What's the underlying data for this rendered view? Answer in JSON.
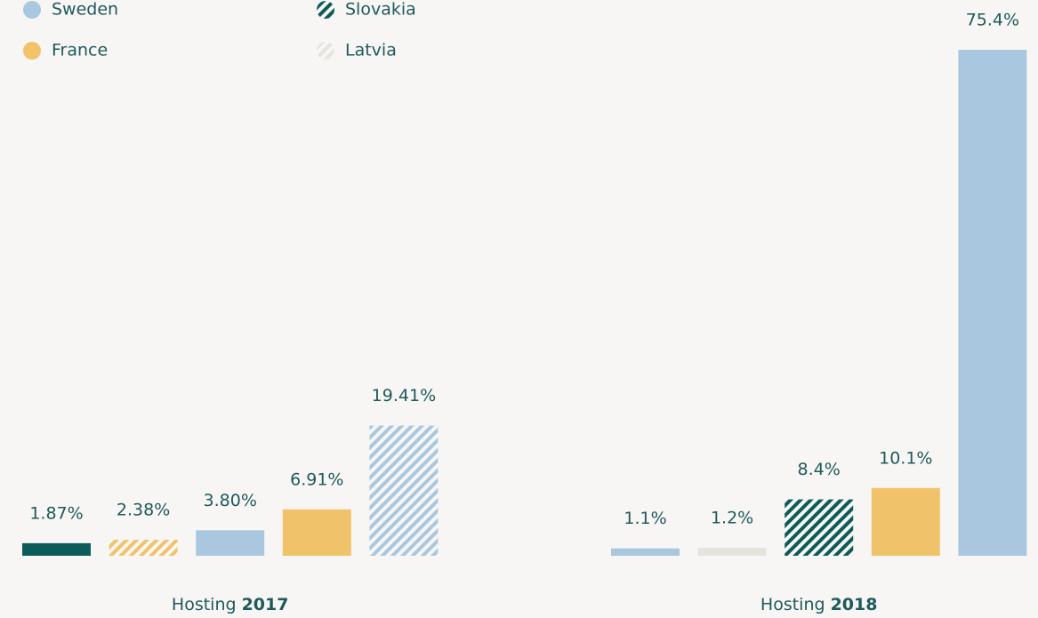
{
  "chart_data": {
    "type": "bar",
    "legend": [
      {
        "name": "Sweden",
        "color": "#a9c8e0",
        "hatched": false
      },
      {
        "name": "France",
        "color": "#f0c36a",
        "hatched": false
      },
      {
        "name": "Slovakia",
        "color": "#0d5c5a",
        "hatched": true
      },
      {
        "name": "Latvia",
        "color": "#e6e4de",
        "hatched": true
      }
    ],
    "groups": [
      {
        "label": "Hosting",
        "year": "2017",
        "values": [
          1.87,
          2.38,
          3.8,
          6.91,
          19.41
        ],
        "value_labels": [
          "1.87%",
          "2.38%",
          "3.80%",
          "6.91%",
          "19.41%"
        ],
        "colors": [
          "#0d5c5a",
          "#f0c36a",
          "#a9c8e0",
          "#f0c36a",
          "#a9c8e0"
        ],
        "hatched": [
          false,
          true,
          false,
          false,
          true
        ]
      },
      {
        "label": "Hosting",
        "year": "2018",
        "values": [
          1.1,
          1.2,
          8.4,
          10.1,
          75.4
        ],
        "value_labels": [
          "1.1%",
          "1.2%",
          "8.4%",
          "10.1%",
          "75.4%"
        ],
        "colors": [
          "#a9c8e0",
          "#e6e4de",
          "#0d5c5a",
          "#f0c36a",
          "#a9c8e0"
        ],
        "hatched": [
          false,
          false,
          true,
          false,
          false
        ]
      }
    ],
    "ylim": [
      0,
      75.4
    ]
  }
}
